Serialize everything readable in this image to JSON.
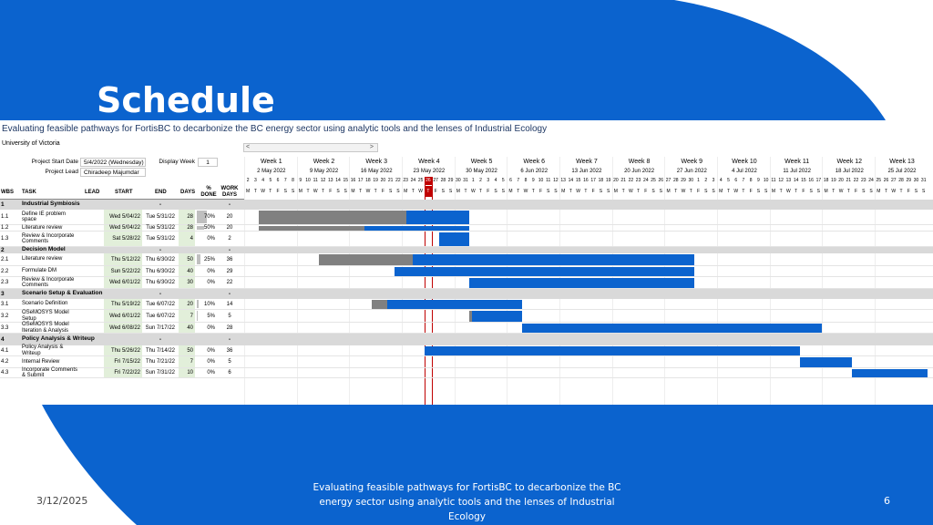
{
  "slide": {
    "title": "Schedule",
    "footer_date": "3/12/2025",
    "footer_text": "Evaluating feasible pathways for FortisBC to decarbonize the BC energy sector using analytic tools and the lenses of Industrial Ecology",
    "page_number": "6",
    "colors": {
      "primary": "#0b63ce",
      "bar_done": "#808080",
      "bar_remaining": "#0b63ce",
      "today": "#c00000",
      "section_bg": "#d9d9d9",
      "start_bg": "#e2efda"
    }
  },
  "sheet": {
    "title": "Evaluating feasible pathways for FortisBC to decarbonize the BC energy sector using analytic tools and the lenses of Industrial Ecology",
    "organization": "University of Victoria",
    "scroll_left": "<",
    "scroll_right": ">",
    "project_start_label": "Project Start Date",
    "project_start_value": "5/4/2022 (Wednesday)",
    "project_lead_label": "Project Lead",
    "project_lead_value": "Chiradeep Majumdar",
    "display_week_label": "Display Week",
    "display_week_value": "1",
    "headers": {
      "wbs": "WBS",
      "task": "TASK",
      "lead": "LEAD",
      "start": "START",
      "end": "END",
      "days": "DAYS",
      "done": "% DONE",
      "work_days": "WORK DAYS"
    }
  },
  "timeline": {
    "weeks": [
      {
        "label": "Week 1",
        "date": "2 May 2022"
      },
      {
        "label": "Week 2",
        "date": "9 May 2022"
      },
      {
        "label": "Week 3",
        "date": "16 May 2022"
      },
      {
        "label": "Week 4",
        "date": "23 May 2022"
      },
      {
        "label": "Week 5",
        "date": "30 May 2022"
      },
      {
        "label": "Week 6",
        "date": "6 Jun 2022"
      },
      {
        "label": "Week 7",
        "date": "13 Jun 2022"
      },
      {
        "label": "Week 8",
        "date": "20 Jun 2022"
      },
      {
        "label": "Week 9",
        "date": "27 Jun 2022"
      },
      {
        "label": "Week 10",
        "date": "4 Jul 2022"
      },
      {
        "label": "Week 11",
        "date": "11 Jul 2022"
      },
      {
        "label": "Week 12",
        "date": "18 Jul 2022"
      },
      {
        "label": "Week 13",
        "date": "25 Jul 2022"
      }
    ],
    "day_numbers": [
      "2",
      "3",
      "4",
      "5",
      "6",
      "7",
      "8",
      "9",
      "10",
      "11",
      "12",
      "13",
      "14",
      "15",
      "16",
      "17",
      "18",
      "19",
      "20",
      "21",
      "22",
      "23",
      "24",
      "25",
      "26",
      "27",
      "28",
      "29",
      "30",
      "31",
      "1",
      "2",
      "3",
      "4",
      "5",
      "6",
      "7",
      "8",
      "9",
      "10",
      "11",
      "12",
      "13",
      "14",
      "15",
      "16",
      "17",
      "18",
      "19",
      "20",
      "21",
      "22",
      "23",
      "24",
      "25",
      "26",
      "27",
      "28",
      "29",
      "30",
      "1",
      "2",
      "3",
      "4",
      "5",
      "6",
      "7",
      "8",
      "9",
      "10",
      "11",
      "12",
      "13",
      "14",
      "15",
      "16",
      "17",
      "18",
      "19",
      "20",
      "21",
      "22",
      "23",
      "24",
      "25",
      "26",
      "27",
      "28",
      "29",
      "30",
      "31"
    ],
    "day_letters": [
      "M",
      "T",
      "W",
      "T",
      "F",
      "S",
      "S"
    ],
    "today_index": 24
  },
  "rows": [
    {
      "kind": "section",
      "wbs": "1",
      "task": "Industrial Symbiosis",
      "end": "-",
      "work_days": "-"
    },
    {
      "kind": "task",
      "wbs": "1.1",
      "task": "Define IE problem space",
      "lead": "",
      "start": "Wed 5/04/22",
      "end": "Tue 5/31/22",
      "days": "28",
      "done": "70%",
      "done_frac": 0.7,
      "work_days": "20",
      "gantt_start": 2,
      "gantt_duration": 28
    },
    {
      "kind": "task",
      "wbs": "1.2",
      "task": "Literature review",
      "lead": "",
      "start": "Wed 5/04/22",
      "end": "Tue 5/31/22",
      "days": "28",
      "done": "50%",
      "done_frac": 0.5,
      "work_days": "20",
      "gantt_start": 2,
      "gantt_duration": 28
    },
    {
      "kind": "task",
      "wbs": "1.3",
      "task": "Review & Incorporate Comments",
      "lead": "",
      "start": "Sat 5/28/22",
      "end": "Tue 5/31/22",
      "days": "4",
      "done": "0%",
      "done_frac": 0,
      "work_days": "2",
      "gantt_start": 26,
      "gantt_duration": 4
    },
    {
      "kind": "section",
      "wbs": "2",
      "task": "Decision Model",
      "end": "-",
      "work_days": "-"
    },
    {
      "kind": "task",
      "wbs": "2.1",
      "task": "Literature review",
      "lead": "",
      "start": "Thu 5/12/22",
      "end": "Thu 6/30/22",
      "days": "50",
      "done": "25%",
      "done_frac": 0.25,
      "work_days": "36",
      "gantt_start": 10,
      "gantt_duration": 50
    },
    {
      "kind": "task",
      "wbs": "2.2",
      "task": "Formulate DM",
      "lead": "",
      "start": "Sun 5/22/22",
      "end": "Thu 6/30/22",
      "days": "40",
      "done": "0%",
      "done_frac": 0,
      "work_days": "29",
      "gantt_start": 20,
      "gantt_duration": 40
    },
    {
      "kind": "task",
      "wbs": "2.3",
      "task": "Review & Incorporate Comments",
      "lead": "",
      "start": "Wed 6/01/22",
      "end": "Thu 6/30/22",
      "days": "30",
      "done": "0%",
      "done_frac": 0,
      "work_days": "22",
      "gantt_start": 30,
      "gantt_duration": 30
    },
    {
      "kind": "section",
      "wbs": "3",
      "task": "Scenario Setup & Evaluation",
      "end": "-",
      "work_days": "-"
    },
    {
      "kind": "task",
      "wbs": "3.1",
      "task": "Scenario Definition",
      "lead": "",
      "start": "Thu 5/19/22",
      "end": "Tue 6/07/22",
      "days": "20",
      "done": "10%",
      "done_frac": 0.1,
      "work_days": "14",
      "gantt_start": 17,
      "gantt_duration": 20
    },
    {
      "kind": "task",
      "wbs": "3.2",
      "task": "OSeMOSYS Model Setup",
      "lead": "",
      "start": "Wed 6/01/22",
      "end": "Tue 6/07/22",
      "days": "7",
      "done": "5%",
      "done_frac": 0.05,
      "work_days": "5",
      "gantt_start": 30,
      "gantt_duration": 7
    },
    {
      "kind": "task",
      "wbs": "3.3",
      "task": "OSeMOSYS Model Iteration & Analysis",
      "lead": "",
      "start": "Wed 6/08/22",
      "end": "Sun 7/17/22",
      "days": "40",
      "done": "0%",
      "done_frac": 0,
      "work_days": "28",
      "gantt_start": 37,
      "gantt_duration": 40
    },
    {
      "kind": "section",
      "wbs": "4",
      "task": "Policy Analysis & Writeup",
      "end": "-",
      "work_days": "-"
    },
    {
      "kind": "task",
      "wbs": "4.1",
      "task": "Policy Analysis & Writeup",
      "lead": "",
      "start": "Thu 5/26/22",
      "end": "Thu 7/14/22",
      "days": "50",
      "done": "0%",
      "done_frac": 0,
      "work_days": "36",
      "gantt_start": 24,
      "gantt_duration": 50
    },
    {
      "kind": "task",
      "wbs": "4.2",
      "task": "Internal Review",
      "lead": "",
      "start": "Fri 7/15/22",
      "end": "Thu 7/21/22",
      "days": "7",
      "done": "0%",
      "done_frac": 0,
      "work_days": "5",
      "gantt_start": 74,
      "gantt_duration": 7
    },
    {
      "kind": "task",
      "wbs": "4.3",
      "task": "Incorporate Comments & Submit",
      "lead": "",
      "start": "Fri 7/22/22",
      "end": "Sun 7/31/22",
      "days": "10",
      "done": "0%",
      "done_frac": 0,
      "work_days": "6",
      "gantt_start": 81,
      "gantt_duration": 10
    }
  ]
}
